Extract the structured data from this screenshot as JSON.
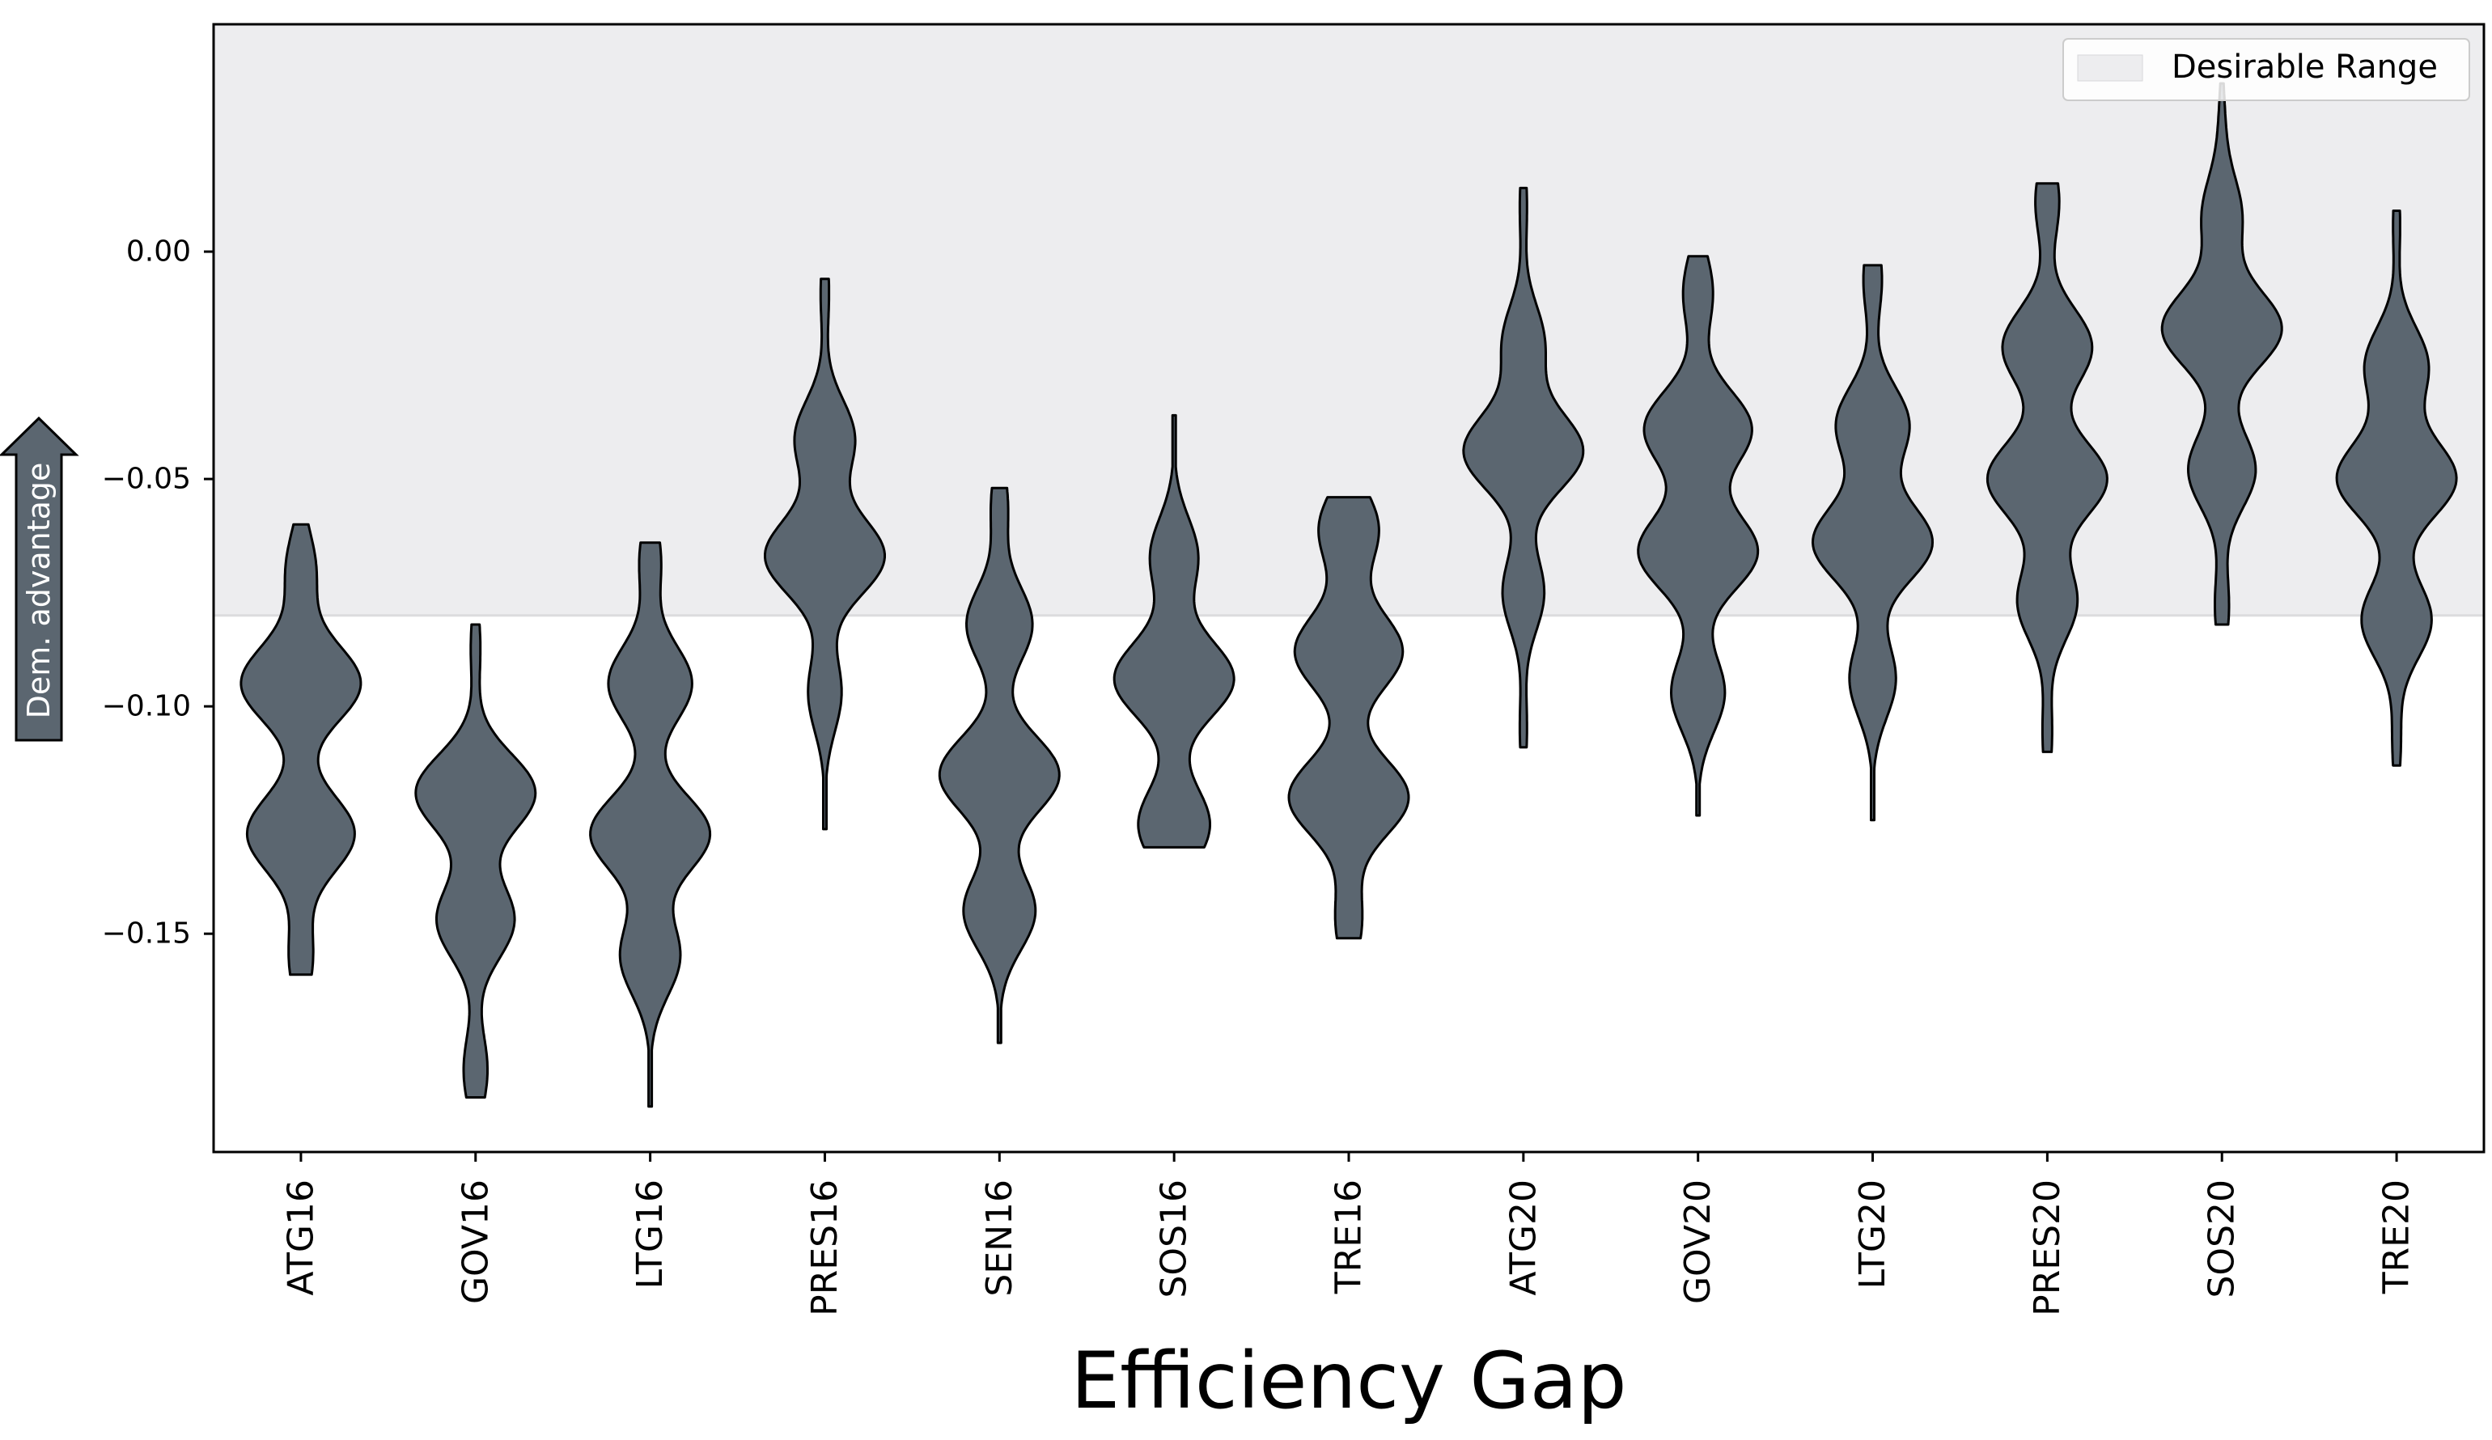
{
  "chart_data": {
    "type": "violin",
    "title": "",
    "xlabel": "Efficiency Gap",
    "ylabel_arrow": "Dem. advantage",
    "ylim": [
      -0.198,
      0.05
    ],
    "yticks": [
      0.0,
      -0.05,
      -0.1,
      -0.15
    ],
    "ytick_labels": [
      "0.00",
      "−0.05",
      "−0.10",
      "−0.15"
    ],
    "categories": [
      "ATG16",
      "GOV16",
      "LTG16",
      "PRES16",
      "SEN16",
      "SOS16",
      "TRE16",
      "ATG20",
      "GOV20",
      "LTG20",
      "PRES20",
      "SOS20",
      "TRE20"
    ],
    "desirable_range": {
      "label": "Desirable Range",
      "min": -0.08,
      "max": 0.05,
      "color": "#ededef"
    },
    "legend": {
      "position": "top-right",
      "entries": [
        "Desirable Range"
      ]
    },
    "violin_color": "#5b6670",
    "violins": [
      {
        "name": "ATG16",
        "min": -0.159,
        "max": -0.06,
        "modes": [
          [
            -0.07,
            0.25
          ],
          [
            -0.095,
            1.0
          ],
          [
            -0.128,
            0.9
          ],
          [
            -0.155,
            0.2
          ]
        ]
      },
      {
        "name": "GOV16",
        "min": -0.186,
        "max": -0.082,
        "modes": [
          [
            -0.087,
            0.08
          ],
          [
            -0.119,
            1.0
          ],
          [
            -0.147,
            0.65
          ],
          [
            -0.18,
            0.2
          ]
        ]
      },
      {
        "name": "LTG16",
        "min": -0.188,
        "max": -0.064,
        "modes": [
          [
            -0.068,
            0.18
          ],
          [
            -0.095,
            0.7
          ],
          [
            -0.128,
            1.0
          ],
          [
            -0.155,
            0.5
          ]
        ]
      },
      {
        "name": "PRES16",
        "min": -0.127,
        "max": -0.006,
        "modes": [
          [
            -0.009,
            0.07
          ],
          [
            -0.041,
            0.5
          ],
          [
            -0.067,
            1.0
          ],
          [
            -0.097,
            0.28
          ]
        ]
      },
      {
        "name": "SEN16",
        "min": -0.174,
        "max": -0.052,
        "modes": [
          [
            -0.056,
            0.14
          ],
          [
            -0.082,
            0.55
          ],
          [
            -0.115,
            1.0
          ],
          [
            -0.145,
            0.6
          ]
        ]
      },
      {
        "name": "SOS16",
        "min": -0.131,
        "max": -0.036,
        "modes": [
          [
            -0.067,
            0.4
          ],
          [
            -0.094,
            1.0
          ],
          [
            -0.126,
            0.6
          ]
        ]
      },
      {
        "name": "TRE16",
        "min": -0.151,
        "max": -0.054,
        "modes": [
          [
            -0.061,
            0.5
          ],
          [
            -0.088,
            0.9
          ],
          [
            -0.12,
            1.0
          ],
          [
            -0.147,
            0.22
          ]
        ]
      },
      {
        "name": "ATG20",
        "min": -0.109,
        "max": 0.014,
        "modes": [
          [
            0.01,
            0.06
          ],
          [
            -0.02,
            0.35
          ],
          [
            -0.044,
            1.0
          ],
          [
            -0.075,
            0.35
          ],
          [
            -0.105,
            0.06
          ]
        ]
      },
      {
        "name": "GOV20",
        "min": -0.124,
        "max": -0.001,
        "modes": [
          [
            -0.009,
            0.25
          ],
          [
            -0.039,
            0.9
          ],
          [
            -0.066,
            1.0
          ],
          [
            -0.097,
            0.45
          ]
        ]
      },
      {
        "name": "LTG20",
        "min": -0.125,
        "max": -0.003,
        "modes": [
          [
            -0.006,
            0.14
          ],
          [
            -0.038,
            0.55
          ],
          [
            -0.064,
            0.9
          ],
          [
            -0.094,
            0.35
          ]
        ]
      },
      {
        "name": "PRES20",
        "min": -0.11,
        "max": 0.015,
        "modes": [
          [
            0.011,
            0.2
          ],
          [
            -0.021,
            0.75
          ],
          [
            -0.05,
            1.0
          ],
          [
            -0.077,
            0.5
          ],
          [
            -0.106,
            0.08
          ]
        ]
      },
      {
        "name": "SOS20",
        "min": -0.082,
        "max": 0.037,
        "modes": [
          [
            0.028,
            0.04
          ],
          [
            0.008,
            0.28
          ],
          [
            -0.017,
            0.85
          ],
          [
            -0.048,
            0.48
          ],
          [
            -0.078,
            0.1
          ]
        ]
      },
      {
        "name": "TRE20",
        "min": -0.113,
        "max": 0.009,
        "modes": [
          [
            0.006,
            0.05
          ],
          [
            -0.025,
            0.45
          ],
          [
            -0.05,
            0.85
          ],
          [
            -0.081,
            0.5
          ],
          [
            -0.108,
            0.06
          ]
        ]
      }
    ]
  }
}
